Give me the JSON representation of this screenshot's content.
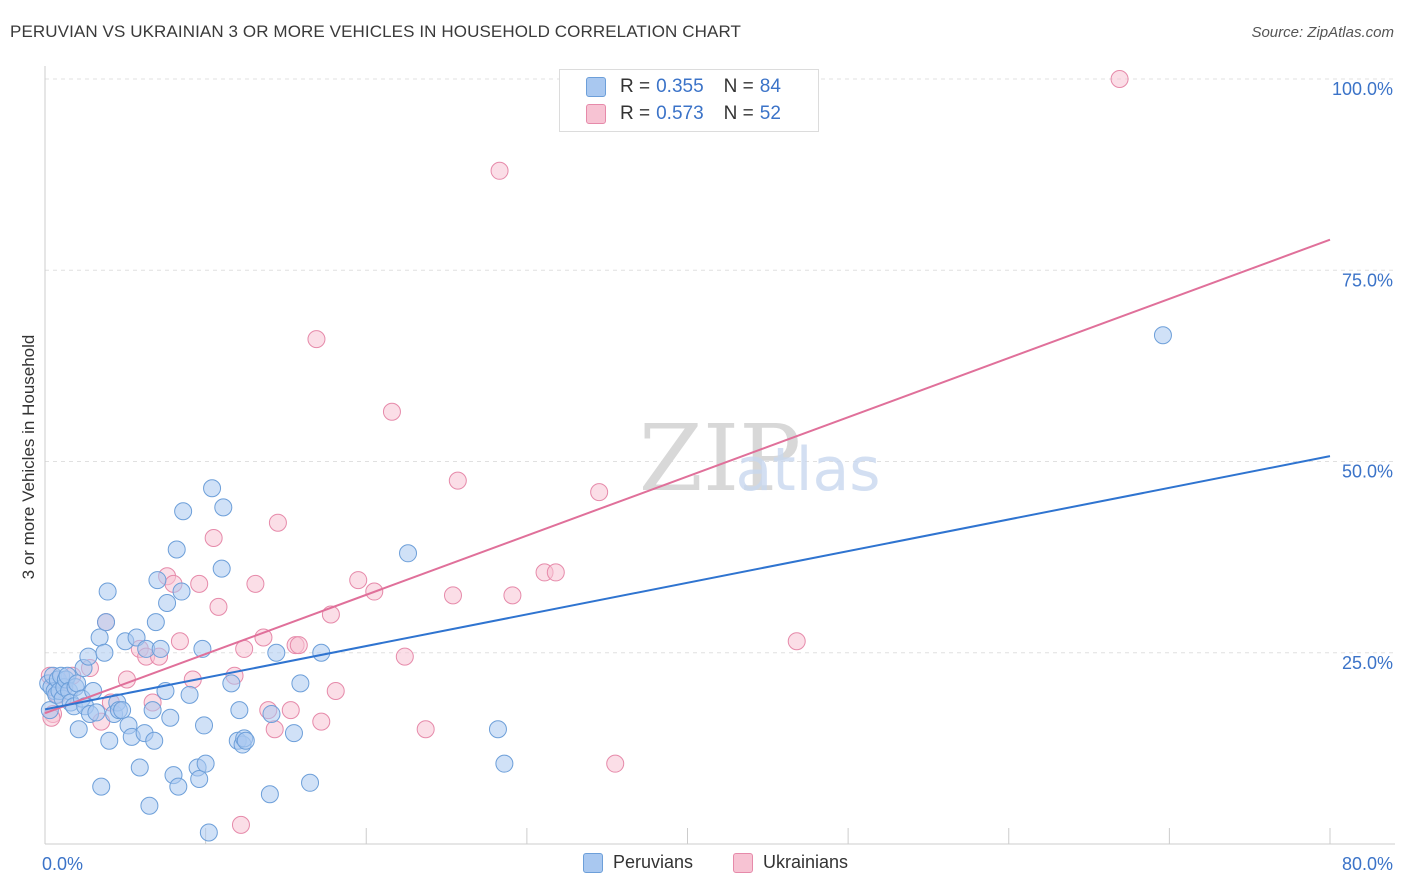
{
  "title": "PERUVIAN VS UKRAINIAN 3 OR MORE VEHICLES IN HOUSEHOLD CORRELATION CHART",
  "source": "Source: ZipAtlas.com",
  "legend": {
    "rows": [
      {
        "r_label": "R =",
        "r_value": "0.355",
        "n_label": "N =",
        "n_value": "84"
      },
      {
        "r_label": "R =",
        "r_value": "0.573",
        "n_label": "N =",
        "n_value": "52"
      }
    ],
    "series": [
      "Peruvians",
      "Ukrainians"
    ]
  },
  "colors": {
    "peruvian_fill": "#a9c8f0",
    "peruvian_stroke": "#6d9fd9",
    "peruvian_line": "#2f74d0",
    "ukrainian_fill": "#f7c3d3",
    "ukrainian_stroke": "#e68aaa",
    "ukrainian_line": "#e0709a",
    "tick_label": "#3b73c8"
  },
  "chart_data": {
    "type": "scatter",
    "ylabel": "3 or more Vehicles in Household",
    "xlim": [
      0,
      80
    ],
    "ylim": [
      0,
      100
    ],
    "x_tick_labels": [
      "0.0%",
      "80.0%"
    ],
    "y_ticks": [
      25,
      50,
      75,
      100
    ],
    "y_tick_labels": [
      "25.0%",
      "50.0%",
      "75.0%",
      "100.0%"
    ],
    "grid": true,
    "legend_position": "top-center",
    "watermark": "ZIPatlas",
    "series": [
      {
        "name": "Peruvians",
        "trendline": [
          [
            0,
            17.6
          ],
          [
            80,
            50.7
          ]
        ],
        "points": [
          [
            0.2,
            21
          ],
          [
            0.3,
            17.5
          ],
          [
            0.4,
            20.5
          ],
          [
            0.5,
            22
          ],
          [
            0.6,
            20
          ],
          [
            0.7,
            19.5
          ],
          [
            0.8,
            21.5
          ],
          [
            0.9,
            20
          ],
          [
            1.0,
            22
          ],
          [
            1.1,
            19
          ],
          [
            1.2,
            20.5
          ],
          [
            1.3,
            21.5
          ],
          [
            1.4,
            22
          ],
          [
            1.5,
            20
          ],
          [
            1.6,
            18.5
          ],
          [
            1.8,
            18
          ],
          [
            1.9,
            20.5
          ],
          [
            2.0,
            21
          ],
          [
            2.1,
            15
          ],
          [
            2.3,
            19
          ],
          [
            2.4,
            23
          ],
          [
            2.5,
            18
          ],
          [
            2.7,
            24.5
          ],
          [
            2.8,
            17
          ],
          [
            3.0,
            20
          ],
          [
            3.2,
            17.2
          ],
          [
            3.4,
            27
          ],
          [
            3.5,
            7.5
          ],
          [
            3.7,
            25
          ],
          [
            3.8,
            29
          ],
          [
            3.9,
            33
          ],
          [
            4.0,
            13.5
          ],
          [
            4.3,
            17
          ],
          [
            4.5,
            18.5
          ],
          [
            4.6,
            17.5
          ],
          [
            4.8,
            17.5
          ],
          [
            5.0,
            26.5
          ],
          [
            5.2,
            15.5
          ],
          [
            5.4,
            14
          ],
          [
            5.7,
            27
          ],
          [
            5.9,
            10
          ],
          [
            6.2,
            14.5
          ],
          [
            6.3,
            25.5
          ],
          [
            6.5,
            5
          ],
          [
            6.7,
            17.5
          ],
          [
            6.8,
            13.5
          ],
          [
            6.9,
            29
          ],
          [
            7.0,
            34.5
          ],
          [
            7.2,
            25.5
          ],
          [
            7.5,
            20
          ],
          [
            7.6,
            31.5
          ],
          [
            7.8,
            16.5
          ],
          [
            8.0,
            9
          ],
          [
            8.2,
            38.5
          ],
          [
            8.3,
            7.5
          ],
          [
            8.5,
            33
          ],
          [
            8.6,
            43.5
          ],
          [
            9.0,
            19.5
          ],
          [
            9.5,
            10
          ],
          [
            9.6,
            8.5
          ],
          [
            9.8,
            25.5
          ],
          [
            9.9,
            15.5
          ],
          [
            10.0,
            10.5
          ],
          [
            10.2,
            1.5
          ],
          [
            10.4,
            46.5
          ],
          [
            11.0,
            36
          ],
          [
            11.1,
            44
          ],
          [
            11.6,
            21
          ],
          [
            12.0,
            13.5
          ],
          [
            12.1,
            17.5
          ],
          [
            12.3,
            13
          ],
          [
            12.4,
            13.8
          ],
          [
            12.5,
            13.5
          ],
          [
            14.0,
            6.5
          ],
          [
            14.1,
            17
          ],
          [
            14.4,
            25
          ],
          [
            15.5,
            14.5
          ],
          [
            15.9,
            21
          ],
          [
            16.5,
            8
          ],
          [
            17.2,
            25
          ],
          [
            22.6,
            38
          ],
          [
            28.2,
            15
          ],
          [
            28.6,
            10.5
          ],
          [
            69.6,
            66.5
          ]
        ]
      },
      {
        "name": "Ukrainians",
        "trendline": [
          [
            0,
            17.1
          ],
          [
            80,
            79.0
          ]
        ],
        "points": [
          [
            0.3,
            22
          ],
          [
            0.5,
            17
          ],
          [
            0.8,
            19.5
          ],
          [
            1.2,
            20.5
          ],
          [
            1.7,
            22
          ],
          [
            2.8,
            23
          ],
          [
            3.5,
            16
          ],
          [
            3.8,
            29
          ],
          [
            4.1,
            18.5
          ],
          [
            5.1,
            21.5
          ],
          [
            5.9,
            25.5
          ],
          [
            6.3,
            24.5
          ],
          [
            6.7,
            18.5
          ],
          [
            7.1,
            24.5
          ],
          [
            7.6,
            35
          ],
          [
            8.4,
            26.5
          ],
          [
            9.2,
            21.5
          ],
          [
            9.6,
            34
          ],
          [
            10.5,
            40
          ],
          [
            10.8,
            31
          ],
          [
            11.8,
            22
          ],
          [
            12.2,
            2.5
          ],
          [
            12.4,
            25.5
          ],
          [
            13.1,
            34
          ],
          [
            13.6,
            27
          ],
          [
            14.3,
            15
          ],
          [
            14.5,
            42
          ],
          [
            15.3,
            17.5
          ],
          [
            15.6,
            26
          ],
          [
            15.8,
            26
          ],
          [
            16.9,
            66
          ],
          [
            17.2,
            16
          ],
          [
            17.8,
            30
          ],
          [
            18.1,
            20
          ],
          [
            19.5,
            34.5
          ],
          [
            20.5,
            33
          ],
          [
            21.6,
            56.5
          ],
          [
            22.4,
            24.5
          ],
          [
            23.7,
            15
          ],
          [
            25.4,
            32.5
          ],
          [
            25.7,
            47.5
          ],
          [
            28.3,
            88
          ],
          [
            29.1,
            32.5
          ],
          [
            31.1,
            35.5
          ],
          [
            31.8,
            35.5
          ],
          [
            34.5,
            46
          ],
          [
            35.5,
            10.5
          ],
          [
            46.8,
            26.5
          ],
          [
            66.9,
            100
          ],
          [
            8.0,
            34
          ],
          [
            13.9,
            17.5
          ],
          [
            0.4,
            16.5
          ]
        ]
      }
    ]
  }
}
